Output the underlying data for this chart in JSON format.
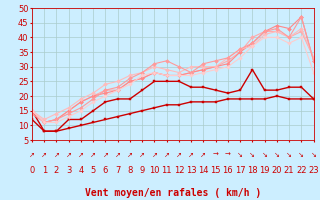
{
  "xlabel": "Vent moyen/en rafales ( km/h )",
  "xlim": [
    0,
    23
  ],
  "ylim": [
    5,
    50
  ],
  "yticks": [
    5,
    10,
    15,
    20,
    25,
    30,
    35,
    40,
    45,
    50
  ],
  "xticks": [
    0,
    1,
    2,
    3,
    4,
    5,
    6,
    7,
    8,
    9,
    10,
    11,
    12,
    13,
    14,
    15,
    16,
    17,
    18,
    19,
    20,
    21,
    22,
    23
  ],
  "background_color": "#cceeff",
  "grid_color": "#aacccc",
  "series": [
    {
      "x": [
        0,
        1,
        2,
        3,
        4,
        5,
        6,
        7,
        8,
        9,
        10,
        11,
        12,
        13,
        14,
        15,
        16,
        17,
        18,
        19,
        20,
        21,
        22,
        23
      ],
      "y": [
        15,
        8,
        8,
        12,
        12,
        15,
        18,
        19,
        19,
        22,
        25,
        25,
        25,
        23,
        23,
        22,
        21,
        22,
        29,
        22,
        22,
        23,
        23,
        19
      ],
      "color": "#cc0000",
      "linewidth": 1.0,
      "marker": "s",
      "markersize": 2.0
    },
    {
      "x": [
        0,
        1,
        2,
        3,
        4,
        5,
        6,
        7,
        8,
        9,
        10,
        11,
        12,
        13,
        14,
        15,
        16,
        17,
        18,
        19,
        20,
        21,
        22,
        23
      ],
      "y": [
        12,
        8,
        8,
        9,
        10,
        11,
        12,
        13,
        14,
        15,
        16,
        17,
        17,
        18,
        18,
        18,
        19,
        19,
        19,
        19,
        20,
        19,
        19,
        19
      ],
      "color": "#cc0000",
      "linewidth": 1.0,
      "marker": "s",
      "markersize": 2.0
    },
    {
      "x": [
        0,
        1,
        2,
        3,
        4,
        5,
        6,
        7,
        8,
        9,
        10,
        11,
        12,
        13,
        14,
        15,
        16,
        17,
        18,
        19,
        20,
        21,
        22,
        23
      ],
      "y": [
        15,
        11,
        12,
        15,
        18,
        20,
        22,
        22,
        25,
        26,
        28,
        27,
        27,
        28,
        29,
        30,
        32,
        35,
        40,
        42,
        42,
        40,
        42,
        33
      ],
      "color": "#ffaaaa",
      "linewidth": 0.8,
      "marker": "D",
      "markersize": 2.0
    },
    {
      "x": [
        0,
        1,
        2,
        3,
        4,
        5,
        6,
        7,
        8,
        9,
        10,
        11,
        12,
        13,
        14,
        15,
        16,
        17,
        18,
        19,
        20,
        21,
        22,
        23
      ],
      "y": [
        15,
        11,
        12,
        15,
        18,
        20,
        21,
        22,
        25,
        26,
        28,
        27,
        27,
        28,
        29,
        30,
        31,
        35,
        38,
        42,
        44,
        43,
        47,
        32
      ],
      "color": "#ff8888",
      "linewidth": 0.8,
      "marker": "D",
      "markersize": 2.0
    },
    {
      "x": [
        0,
        1,
        2,
        3,
        4,
        5,
        6,
        7,
        8,
        9,
        10,
        11,
        12,
        13,
        14,
        15,
        16,
        17,
        18,
        19,
        20,
        21,
        22,
        23
      ],
      "y": [
        15,
        12,
        14,
        16,
        19,
        21,
        24,
        25,
        27,
        28,
        30,
        29,
        28,
        30,
        30,
        30,
        33,
        36,
        37,
        41,
        42,
        40,
        43,
        33
      ],
      "color": "#ffbbbb",
      "linewidth": 0.8,
      "marker": "D",
      "markersize": 2.0
    },
    {
      "x": [
        0,
        1,
        2,
        3,
        4,
        5,
        6,
        7,
        8,
        9,
        10,
        11,
        12,
        13,
        14,
        15,
        16,
        17,
        18,
        19,
        20,
        21,
        22,
        23
      ],
      "y": [
        14,
        11,
        12,
        14,
        16,
        19,
        22,
        23,
        26,
        28,
        31,
        32,
        30,
        28,
        31,
        32,
        33,
        36,
        38,
        42,
        43,
        40,
        47,
        32
      ],
      "color": "#ff9999",
      "linewidth": 0.8,
      "marker": "D",
      "markersize": 2.0
    },
    {
      "x": [
        0,
        1,
        2,
        3,
        4,
        5,
        6,
        7,
        8,
        9,
        10,
        11,
        12,
        13,
        14,
        15,
        16,
        17,
        18,
        19,
        20,
        21,
        22,
        23
      ],
      "y": [
        15,
        11,
        11,
        13,
        15,
        18,
        20,
        22,
        24,
        27,
        28,
        27,
        27,
        27,
        28,
        29,
        30,
        33,
        37,
        40,
        40,
        38,
        40,
        28
      ],
      "color": "#ffcccc",
      "linewidth": 0.8,
      "marker": "D",
      "markersize": 1.8
    }
  ],
  "arrow_chars": [
    "↗",
    "↗",
    "↗",
    "↗",
    "↗",
    "↗",
    "↗",
    "↗",
    "↗",
    "↗",
    "↗",
    "↗",
    "↗",
    "↗",
    "↗",
    "→",
    "→",
    "↘",
    "↘",
    "↘",
    "↘",
    "↘",
    "↘",
    "↘"
  ],
  "red_color": "#cc0000",
  "xlabel_fontsize": 7,
  "tick_fontsize": 6,
  "arrow_fontsize": 5
}
